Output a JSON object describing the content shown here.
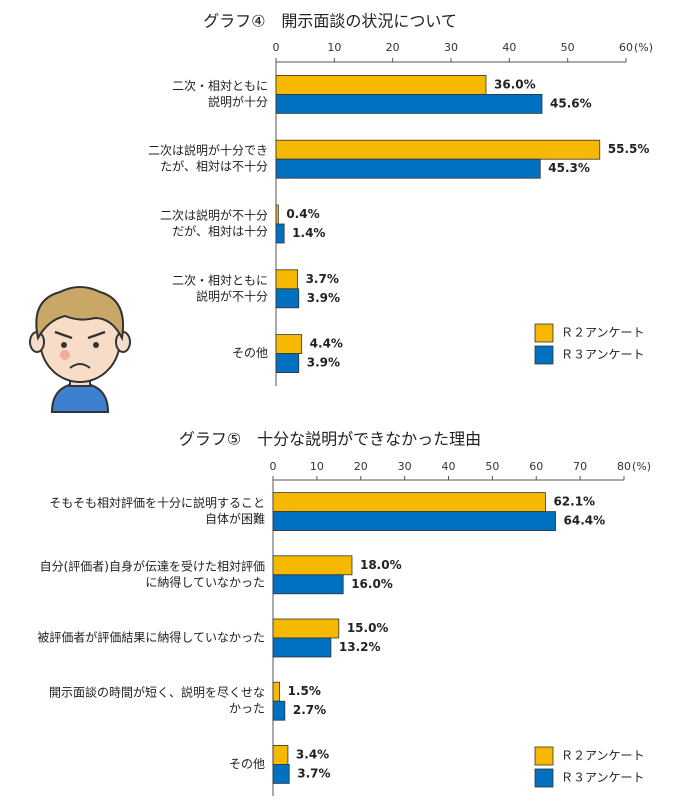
{
  "chart_data": [
    {
      "type": "hbar",
      "title": "グラフ④　開示面談の状況について",
      "unit": "(%)",
      "categories": [
        [
          "二次・相対ともに",
          "説明が十分"
        ],
        [
          "二次は説明が十分でき",
          "たが、相対は不十分"
        ],
        [
          "二次は説明が不十分",
          "だが、相対は十分"
        ],
        [
          "二次・相対ともに",
          "説明が不十分"
        ],
        [
          "その他"
        ]
      ],
      "series": [
        {
          "name": "Ｒ２アンケート",
          "color": "#f6b800",
          "values": [
            36.0,
            55.5,
            0.4,
            3.7,
            4.4
          ],
          "value_labels": [
            "36.0%",
            "55.5%",
            "0.4%",
            "3.7%",
            "4.4%"
          ]
        },
        {
          "name": "Ｒ３アンケート",
          "color": "#0070c0",
          "values": [
            45.6,
            45.3,
            1.4,
            3.9,
            3.9
          ],
          "value_labels": [
            "45.6%",
            "45.3%",
            "1.4%",
            "3.9%",
            "3.9%"
          ]
        }
      ],
      "xlim": [
        0,
        60
      ],
      "xticks": [
        0,
        10,
        20,
        30,
        40,
        50,
        60
      ]
    },
    {
      "type": "hbar",
      "title": "グラフ⑤　十分な説明ができなかった理由",
      "unit": "(%)",
      "categories": [
        [
          "そもそも相対評価を十分に説明すること",
          "自体が困難"
        ],
        [
          "自分(評価者)自身が伝達を受けた相対評価",
          "に納得していなかった"
        ],
        [
          "被評価者が評価結果に納得していなかった"
        ],
        [
          "開示面談の時間が短く、説明を尽くせな",
          "かった"
        ],
        [
          "その他"
        ]
      ],
      "series": [
        {
          "name": "Ｒ２アンケート",
          "color": "#f6b800",
          "values": [
            62.1,
            18.0,
            15.0,
            1.5,
            3.4
          ],
          "value_labels": [
            "62.1%",
            "18.0%",
            "15.0%",
            "1.5%",
            "3.4%"
          ]
        },
        {
          "name": "Ｒ３アンケート",
          "color": "#0070c0",
          "values": [
            64.4,
            16.0,
            13.2,
            2.7,
            3.7
          ],
          "value_labels": [
            "64.4%",
            "16.0%",
            "13.2%",
            "2.7%",
            "3.7%"
          ]
        }
      ],
      "xlim": [
        0,
        80
      ],
      "xticks": [
        0,
        10,
        20,
        30,
        40,
        50,
        60,
        70,
        80
      ]
    }
  ]
}
